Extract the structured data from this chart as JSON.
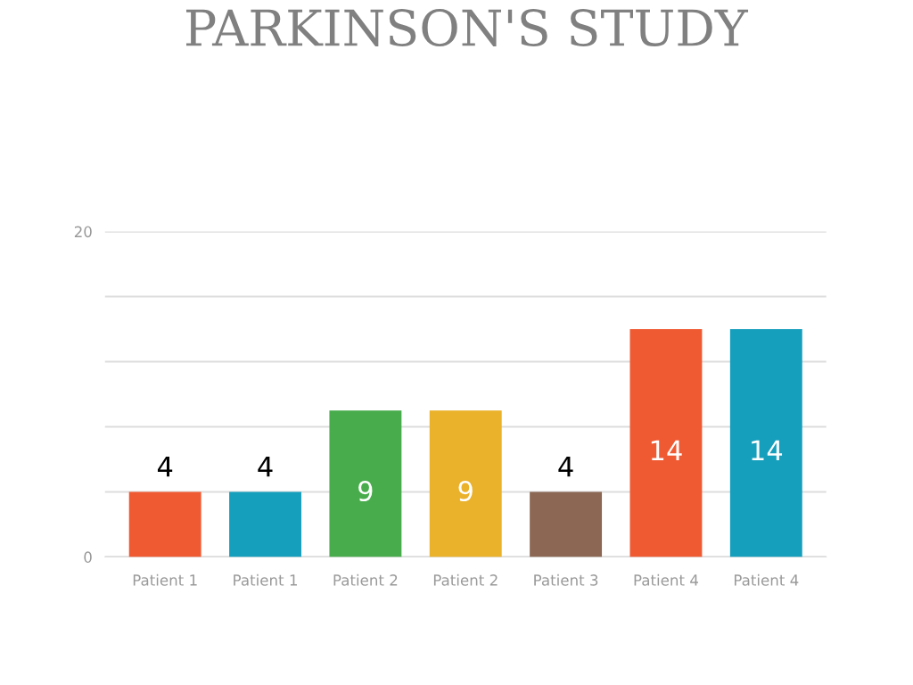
{
  "chart_data": {
    "type": "bar",
    "title": "PARKINSON'S STUDY",
    "categories": [
      "Patient 1",
      "Patient 1",
      "Patient 2",
      "Patient 2",
      "Patient 3",
      "Patient 4",
      "Patient 4"
    ],
    "values": [
      4,
      4,
      9,
      9,
      4,
      14,
      14
    ],
    "colors": [
      "#f05a32",
      "#169fbd",
      "#48ac4c",
      "#eab12a",
      "#8b6754",
      "#f05a32",
      "#169fbd"
    ],
    "ylim": [
      0,
      20
    ],
    "yticks": [
      0,
      {
        "value": 4,
        "label": null
      },
      {
        "value": 8,
        "label": null
      },
      {
        "value": 12,
        "label": null
      },
      {
        "value": 16,
        "label": null
      },
      20
    ],
    "grid": "y",
    "data_labels": true
  }
}
